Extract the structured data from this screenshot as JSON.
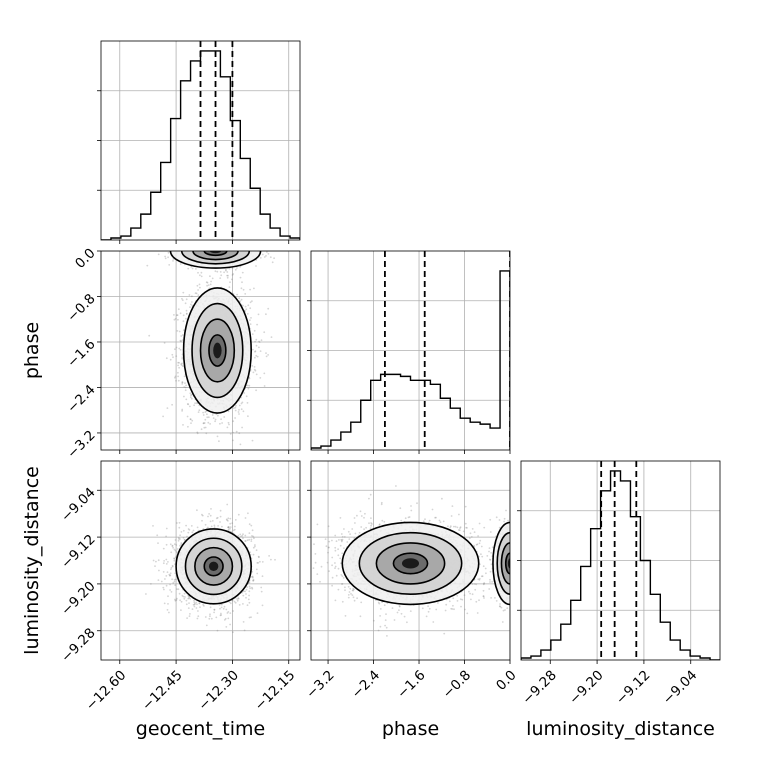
{
  "chart_data": {
    "type": "corner",
    "parameters": [
      "geocent_time",
      "phase",
      "luminosity_distance"
    ],
    "ranges": {
      "geocent_time": [
        -12.65,
        -12.12
      ],
      "phase": [
        -3.5,
        0.0
      ],
      "luminosity_distance": [
        -9.33,
        -8.99
      ]
    },
    "ticks": {
      "geocent_time": {
        "values": [
          -12.6,
          -12.45,
          -12.3,
          -12.15
        ],
        "labels": [
          "−12.60",
          "−12.45",
          "−12.30",
          "−12.15"
        ]
      },
      "phase": {
        "values": [
          -3.2,
          -2.4,
          -1.6,
          -0.8,
          0.0
        ],
        "labels": [
          "−3.2",
          "−2.4",
          "−1.6",
          "−0.8",
          "0.0"
        ]
      },
      "luminosity_distance": {
        "values": [
          -9.28,
          -9.2,
          -9.12,
          -9.04
        ],
        "labels": [
          "−9.28",
          "−9.20",
          "−9.12",
          "−9.04"
        ]
      }
    },
    "quantiles": {
      "geocent_time": [
        -12.385,
        -12.345,
        -12.3
      ],
      "phase": [
        -2.2,
        -1.5,
        0.0
      ],
      "luminosity_distance": [
        -9.193,
        -9.17,
        -9.133
      ]
    },
    "histograms": {
      "geocent_time": {
        "edges": [
          -12.65,
          -12.6235,
          -12.597,
          -12.5705,
          -12.544,
          -12.5175,
          -12.491,
          -12.4645,
          -12.438,
          -12.4115,
          -12.385,
          -12.3585,
          -12.332,
          -12.3055,
          -12.279,
          -12.2525,
          -12.226,
          -12.1995,
          -12.173,
          -12.1465,
          -12.12
        ],
        "counts": [
          0.0,
          0.01,
          0.02,
          0.06,
          0.13,
          0.24,
          0.39,
          0.61,
          0.8,
          0.9,
          0.95,
          0.95,
          0.82,
          0.6,
          0.41,
          0.26,
          0.13,
          0.06,
          0.02,
          0.01
        ]
      },
      "phase": {
        "edges": [
          -3.5,
          -3.325,
          -3.15,
          -2.975,
          -2.8,
          -2.625,
          -2.45,
          -2.275,
          -2.1,
          -1.925,
          -1.75,
          -1.575,
          -1.4,
          -1.225,
          -1.05,
          -0.875,
          -0.7,
          -0.525,
          -0.35,
          -0.175,
          0.0
        ],
        "counts": [
          0.01,
          0.02,
          0.05,
          0.09,
          0.14,
          0.25,
          0.35,
          0.38,
          0.38,
          0.37,
          0.35,
          0.35,
          0.33,
          0.26,
          0.21,
          0.16,
          0.14,
          0.13,
          0.11,
          0.9
        ]
      },
      "luminosity_distance": {
        "edges": [
          -9.33,
          -9.313,
          -9.296,
          -9.279,
          -9.262,
          -9.245,
          -9.228,
          -9.211,
          -9.194,
          -9.177,
          -9.16,
          -9.143,
          -9.126,
          -9.109,
          -9.092,
          -9.075,
          -9.058,
          -9.041,
          -9.024,
          -9.007,
          -8.99
        ],
        "counts": [
          0.01,
          0.02,
          0.05,
          0.1,
          0.18,
          0.3,
          0.47,
          0.66,
          0.85,
          0.95,
          0.9,
          0.72,
          0.5,
          0.33,
          0.19,
          0.1,
          0.05,
          0.02,
          0.01,
          0.0
        ]
      }
    },
    "contours": {
      "phase_vs_geocent_time": [
        {
          "name": "main",
          "center": [
            -12.34,
            -1.75
          ],
          "sigma": [
            0.045,
            0.55
          ]
        },
        {
          "name": "edge",
          "center": [
            -12.345,
            0.0
          ],
          "sigma": [
            0.06,
            0.15
          ]
        }
      ],
      "luminosity_distance_vs_geocent_time": [
        {
          "name": "main",
          "center": [
            -12.35,
            -9.17
          ],
          "sigma": [
            0.05,
            0.032
          ]
        }
      ],
      "luminosity_distance_vs_phase": [
        {
          "name": "main",
          "center": [
            -1.75,
            -9.165
          ],
          "sigma": [
            0.6,
            0.035
          ]
        },
        {
          "name": "edge",
          "center": [
            0.0,
            -9.165
          ],
          "sigma": [
            0.15,
            0.035
          ]
        }
      ]
    },
    "contour_levels_sigma": [
      0.5,
      1.0,
      1.5,
      2.0
    ],
    "grid": true,
    "xlabel_rotation_deg": 45
  }
}
